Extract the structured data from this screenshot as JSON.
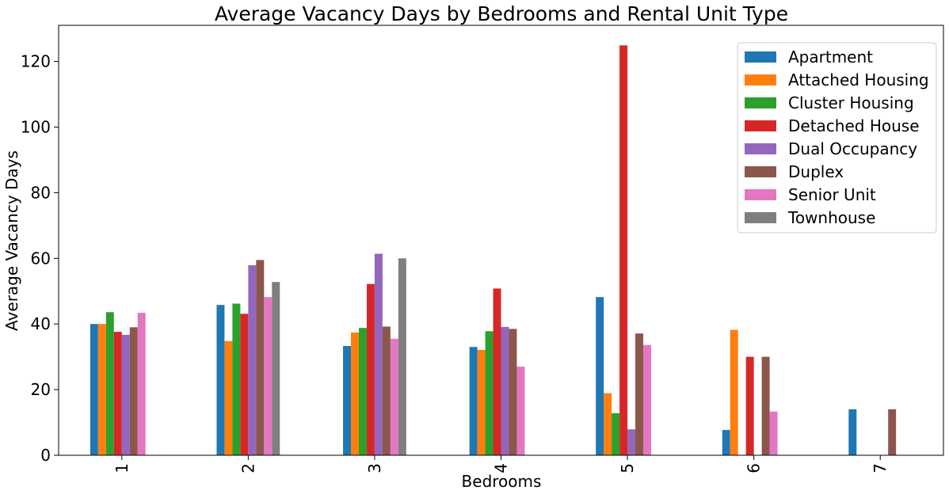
{
  "chart_data": {
    "type": "bar",
    "title": "Average Vacancy Days by Bedrooms and Rental Unit Type",
    "xlabel": "Bedrooms",
    "ylabel": "Average Vacancy Days",
    "categories": [
      "1",
      "2",
      "3",
      "4",
      "5",
      "6",
      "7"
    ],
    "ylim": [
      0,
      131
    ],
    "yticks": [
      0,
      20,
      40,
      60,
      80,
      100,
      120
    ],
    "grid": false,
    "legend": "top-right",
    "series": [
      {
        "name": "Apartment",
        "color": "#1f77b4",
        "values": [
          40.0,
          45.8,
          33.3,
          33.0,
          48.2,
          7.7,
          14.0
        ]
      },
      {
        "name": "Attached Housing",
        "color": "#ff7f0e",
        "values": [
          40.0,
          34.8,
          37.4,
          32.1,
          18.9,
          38.2,
          null
        ]
      },
      {
        "name": "Cluster Housing",
        "color": "#2ca02c",
        "values": [
          43.6,
          46.2,
          38.8,
          37.8,
          12.8,
          null,
          null
        ]
      },
      {
        "name": "Detached House",
        "color": "#d62728",
        "values": [
          37.6,
          43.1,
          52.2,
          50.8,
          124.9,
          30.0,
          null
        ]
      },
      {
        "name": "Dual Occupancy",
        "color": "#9467bd",
        "values": [
          36.7,
          57.9,
          61.4,
          39.1,
          7.9,
          null,
          null
        ]
      },
      {
        "name": "Duplex",
        "color": "#8c564b",
        "values": [
          39.0,
          59.5,
          39.2,
          38.5,
          37.1,
          30.0,
          14.0
        ]
      },
      {
        "name": "Senior Unit",
        "color": "#e377c2",
        "values": [
          43.4,
          48.2,
          35.5,
          27.0,
          33.6,
          13.3,
          null
        ]
      },
      {
        "name": "Townhouse",
        "color": "#7f7f7f",
        "values": [
          null,
          52.8,
          60.0,
          null,
          null,
          null,
          null
        ]
      }
    ]
  }
}
